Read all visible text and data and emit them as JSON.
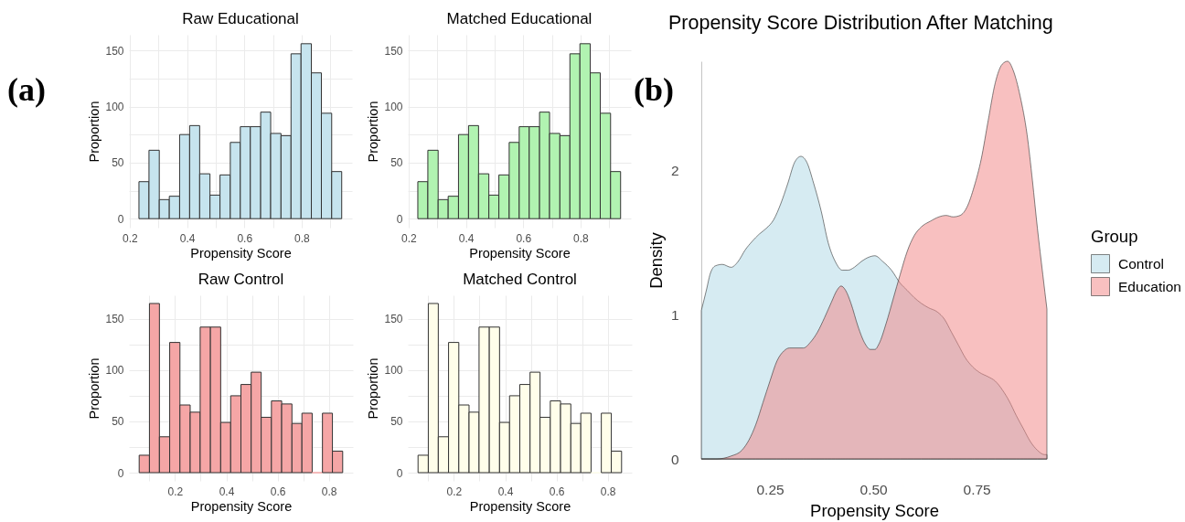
{
  "chart_data": [
    {
      "type": "histogram",
      "title": "Raw Educational",
      "xlabel": "Propensity Score",
      "ylabel": "Proportion",
      "annotations": [
        "(a)"
      ],
      "bins": [
        0.232,
        0.267,
        0.303,
        0.338,
        0.374,
        0.409,
        0.444,
        0.48,
        0.515,
        0.551,
        0.586,
        0.621,
        0.657,
        0.692,
        0.728,
        0.763,
        0.798,
        0.834,
        0.869,
        0.905,
        0.94
      ],
      "values": [
        33,
        61,
        17,
        20,
        75,
        83,
        40,
        21,
        39,
        68,
        82,
        82,
        95,
        76,
        74,
        147,
        156,
        130,
        94,
        42
      ],
      "color": "#c6e4ee",
      "xlim": [
        0.197,
        0.976
      ],
      "ylim": [
        -8,
        164
      ],
      "xticks": [
        0.2,
        {
          "value": 0.3,
          "label": null
        },
        0.4,
        {
          "value": 0.5,
          "label": null
        },
        0.6,
        {
          "value": 0.7,
          "label": null
        },
        0.8,
        {
          "value": 0.9,
          "label": null
        }
      ],
      "yticks": [
        0,
        {
          "value": 25,
          "label": null
        },
        50,
        {
          "value": 75,
          "label": null
        },
        100,
        {
          "value": 125,
          "label": null
        },
        150
      ],
      "grid": true
    },
    {
      "type": "histogram",
      "title": "Matched Educational",
      "xlabel": "Propensity Score",
      "ylabel": "Proportion",
      "bins": [
        0.232,
        0.267,
        0.303,
        0.338,
        0.374,
        0.409,
        0.444,
        0.48,
        0.515,
        0.551,
        0.586,
        0.621,
        0.657,
        0.692,
        0.728,
        0.763,
        0.798,
        0.834,
        0.869,
        0.905,
        0.94
      ],
      "values": [
        33,
        61,
        17,
        20,
        75,
        83,
        40,
        21,
        39,
        68,
        82,
        82,
        95,
        76,
        74,
        147,
        156,
        130,
        94,
        42
      ],
      "color": "#b1f3b1",
      "xlim": [
        0.197,
        0.976
      ],
      "ylim": [
        -8,
        164
      ],
      "xticks": [
        0.2,
        {
          "value": 0.3,
          "label": null
        },
        0.4,
        {
          "value": 0.5,
          "label": null
        },
        0.6,
        {
          "value": 0.7,
          "label": null
        },
        0.8,
        {
          "value": 0.9,
          "label": null
        }
      ],
      "yticks": [
        0,
        {
          "value": 25,
          "label": null
        },
        50,
        {
          "value": 75,
          "label": null
        },
        100,
        {
          "value": 125,
          "label": null
        },
        150
      ],
      "grid": true
    },
    {
      "type": "histogram",
      "title": "Raw Control",
      "xlabel": "Propensity Score",
      "ylabel": "Proportion",
      "bins": [
        0.06,
        0.1,
        0.139,
        0.179,
        0.219,
        0.259,
        0.298,
        0.338,
        0.378,
        0.417,
        0.457,
        0.497,
        0.536,
        0.576,
        0.616,
        0.656,
        0.695,
        0.735,
        0.775,
        0.814,
        0.854
      ],
      "values": [
        17,
        165,
        35,
        127,
        66,
        59,
        142,
        142,
        49,
        75,
        86,
        98,
        54,
        70,
        67,
        48,
        58,
        0,
        58,
        21
      ],
      "color": "#f5a6a6",
      "xlim": [
        0.02,
        0.894
      ],
      "ylim": [
        -8,
        173
      ],
      "xticks": [
        {
          "value": 0.1,
          "label": null
        },
        0.2,
        {
          "value": 0.3,
          "label": null
        },
        0.4,
        {
          "value": 0.5,
          "label": null
        },
        0.6,
        {
          "value": 0.7,
          "label": null
        },
        0.8
      ],
      "yticks": [
        0,
        {
          "value": 25,
          "label": null
        },
        50,
        {
          "value": 75,
          "label": null
        },
        100,
        {
          "value": 125,
          "label": null
        },
        150
      ],
      "grid": true
    },
    {
      "type": "histogram",
      "title": "Matched Control",
      "xlabel": "Propensity Score",
      "ylabel": "Proportion",
      "bins": [
        0.06,
        0.1,
        0.139,
        0.179,
        0.219,
        0.259,
        0.298,
        0.338,
        0.378,
        0.417,
        0.457,
        0.497,
        0.536,
        0.576,
        0.616,
        0.656,
        0.695,
        0.735,
        0.775,
        0.814,
        0.854
      ],
      "values": [
        17,
        165,
        35,
        127,
        66,
        59,
        142,
        142,
        49,
        75,
        86,
        98,
        54,
        70,
        67,
        48,
        58,
        0,
        58,
        21
      ],
      "color": "#fffeea",
      "xlim": [
        0.02,
        0.894
      ],
      "ylim": [
        -8,
        173
      ],
      "xticks": [
        {
          "value": 0.1,
          "label": null
        },
        0.2,
        {
          "value": 0.3,
          "label": null
        },
        0.4,
        {
          "value": 0.5,
          "label": null
        },
        0.6,
        {
          "value": 0.7,
          "label": null
        },
        0.8
      ],
      "yticks": [
        0,
        {
          "value": 25,
          "label": null
        },
        50,
        {
          "value": 75,
          "label": null
        },
        100,
        {
          "value": 125,
          "label": null
        },
        150
      ],
      "grid": true
    },
    {
      "type": "area",
      "title": "Propensity Score Distribution After Matching",
      "xlabel": "Propensity Score",
      "ylabel": "Density",
      "legend_title": "Group",
      "annotations": [
        "(b)"
      ],
      "series": [
        {
          "name": "Control",
          "color": "#d6ebf2",
          "x": [
            0.084,
            0.097,
            0.105,
            0.118,
            0.135,
            0.156,
            0.173,
            0.19,
            0.207,
            0.224,
            0.241,
            0.259,
            0.276,
            0.293,
            0.31,
            0.325,
            0.339,
            0.356,
            0.374,
            0.391,
            0.408,
            0.425,
            0.439,
            0.454,
            0.471,
            0.489,
            0.504,
            0.523,
            0.544,
            0.565,
            0.582,
            0.599,
            0.616,
            0.633,
            0.655,
            0.672,
            0.689,
            0.706,
            0.723,
            0.74,
            0.757,
            0.778,
            0.795,
            0.812,
            0.829,
            0.846,
            0.863,
            0.88,
            0.897,
            0.914,
            0.92
          ],
          "values": [
            1.03,
            1.18,
            1.28,
            1.34,
            1.35,
            1.33,
            1.37,
            1.45,
            1.51,
            1.56,
            1.6,
            1.66,
            1.77,
            1.91,
            2.06,
            2.1,
            2.06,
            1.91,
            1.72,
            1.5,
            1.37,
            1.31,
            1.31,
            1.33,
            1.37,
            1.4,
            1.41,
            1.37,
            1.31,
            1.22,
            1.17,
            1.12,
            1.08,
            1.05,
            1.02,
            0.97,
            0.88,
            0.79,
            0.7,
            0.64,
            0.6,
            0.57,
            0.54,
            0.48,
            0.4,
            0.3,
            0.21,
            0.12,
            0.06,
            0.03,
            0.03
          ]
        },
        {
          "name": "Education",
          "color": "#f8c0c0",
          "x": [
            0.084,
            0.122,
            0.156,
            0.182,
            0.199,
            0.216,
            0.233,
            0.25,
            0.267,
            0.284,
            0.297,
            0.314,
            0.331,
            0.348,
            0.365,
            0.382,
            0.399,
            0.412,
            0.422,
            0.433,
            0.446,
            0.463,
            0.48,
            0.493,
            0.504,
            0.514,
            0.531,
            0.548,
            0.565,
            0.582,
            0.599,
            0.616,
            0.638,
            0.659,
            0.676,
            0.693,
            0.71,
            0.727,
            0.744,
            0.761,
            0.778,
            0.795,
            0.812,
            0.825,
            0.838,
            0.855,
            0.872,
            0.885,
            0.897,
            0.91,
            0.92
          ],
          "values": [
            0,
            0,
            0.02,
            0.06,
            0.13,
            0.24,
            0.39,
            0.54,
            0.68,
            0.75,
            0.77,
            0.77,
            0.77,
            0.81,
            0.88,
            0.98,
            1.09,
            1.17,
            1.2,
            1.17,
            1.08,
            0.92,
            0.8,
            0.76,
            0.76,
            0.8,
            0.94,
            1.11,
            1.28,
            1.44,
            1.55,
            1.61,
            1.65,
            1.68,
            1.69,
            1.68,
            1.69,
            1.75,
            1.89,
            2.08,
            2.35,
            2.61,
            2.74,
            2.76,
            2.7,
            2.52,
            2.25,
            1.93,
            1.6,
            1.28,
            1.04
          ]
        }
      ],
      "xlim": [
        0.084,
        0.92
      ],
      "ylim": [
        0,
        2.76
      ],
      "xticks": [
        0.25,
        {
          "value": 0.5,
          "label": "0.50"
        },
        0.75
      ],
      "yticks": [
        0,
        1,
        2
      ],
      "legend": "right"
    }
  ]
}
